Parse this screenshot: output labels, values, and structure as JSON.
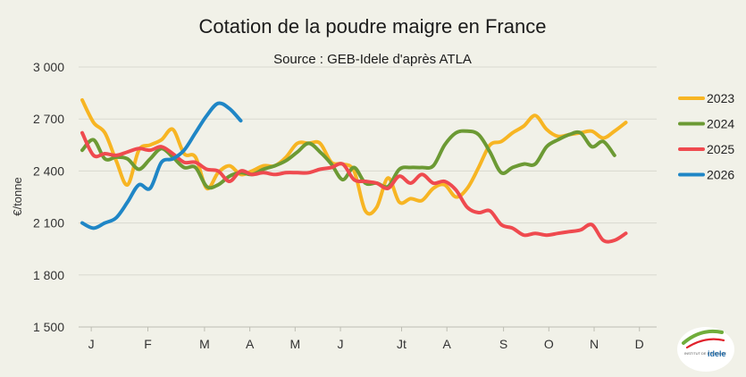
{
  "chart_data": {
    "type": "line",
    "title": "Cotation de la poudre maigre en France",
    "subtitle": "Source : GEB-Idele d'après ATLA",
    "ylabel": "€/tonne",
    "xlabel": "",
    "ylim": [
      1500,
      3000
    ],
    "yticks": [
      1500,
      1800,
      2100,
      2400,
      2700,
      3000
    ],
    "ytick_labels": [
      "1 500",
      "1 800",
      "2 100",
      "2 400",
      "2 700",
      "3 000"
    ],
    "xlim": [
      0,
      12
    ],
    "xtick_labels": [
      "J",
      "F",
      "M",
      "A",
      "M",
      "J",
      "Jt",
      "A",
      "S",
      "O",
      "N",
      "D"
    ],
    "xtick_positions": [
      0.2,
      1.45,
      2.7,
      3.7,
      4.7,
      5.7,
      7.05,
      8.05,
      9.3,
      10.3,
      11.3,
      12.3
    ],
    "grid": true,
    "legend_position": "right",
    "series": [
      {
        "name": "2023",
        "color": "#f7b523",
        "points": [
          [
            0,
            2810
          ],
          [
            0.25,
            2680
          ],
          [
            0.5,
            2620
          ],
          [
            0.75,
            2460
          ],
          [
            1.0,
            2320
          ],
          [
            1.25,
            2520
          ],
          [
            1.5,
            2550
          ],
          [
            1.75,
            2580
          ],
          [
            2.0,
            2640
          ],
          [
            2.25,
            2500
          ],
          [
            2.5,
            2480
          ],
          [
            2.75,
            2300
          ],
          [
            3.0,
            2390
          ],
          [
            3.25,
            2430
          ],
          [
            3.5,
            2380
          ],
          [
            3.75,
            2400
          ],
          [
            4.0,
            2430
          ],
          [
            4.25,
            2430
          ],
          [
            4.5,
            2480
          ],
          [
            4.75,
            2560
          ],
          [
            5.0,
            2560
          ],
          [
            5.25,
            2560
          ],
          [
            5.5,
            2450
          ],
          [
            5.75,
            2440
          ],
          [
            6.0,
            2400
          ],
          [
            6.25,
            2170
          ],
          [
            6.5,
            2190
          ],
          [
            6.75,
            2360
          ],
          [
            7.0,
            2220
          ],
          [
            7.25,
            2240
          ],
          [
            7.5,
            2230
          ],
          [
            7.75,
            2300
          ],
          [
            8.0,
            2320
          ],
          [
            8.25,
            2250
          ],
          [
            8.5,
            2300
          ],
          [
            8.75,
            2420
          ],
          [
            9.0,
            2550
          ],
          [
            9.25,
            2570
          ],
          [
            9.5,
            2620
          ],
          [
            9.75,
            2660
          ],
          [
            10.0,
            2720
          ],
          [
            10.25,
            2640
          ],
          [
            10.5,
            2600
          ],
          [
            10.75,
            2610
          ],
          [
            11.0,
            2620
          ],
          [
            11.25,
            2630
          ],
          [
            11.5,
            2590
          ],
          [
            11.75,
            2630
          ],
          [
            12.0,
            2680
          ]
        ]
      },
      {
        "name": "2024",
        "color": "#6c9a34",
        "points": [
          [
            0,
            2520
          ],
          [
            0.25,
            2580
          ],
          [
            0.5,
            2470
          ],
          [
            0.75,
            2480
          ],
          [
            1.0,
            2470
          ],
          [
            1.25,
            2410
          ],
          [
            1.5,
            2470
          ],
          [
            1.75,
            2530
          ],
          [
            2.0,
            2480
          ],
          [
            2.25,
            2420
          ],
          [
            2.5,
            2420
          ],
          [
            2.75,
            2310
          ],
          [
            3.0,
            2320
          ],
          [
            3.25,
            2370
          ],
          [
            3.5,
            2390
          ],
          [
            3.75,
            2380
          ],
          [
            4.0,
            2410
          ],
          [
            4.25,
            2430
          ],
          [
            4.5,
            2460
          ],
          [
            4.75,
            2510
          ],
          [
            5.0,
            2560
          ],
          [
            5.25,
            2510
          ],
          [
            5.5,
            2440
          ],
          [
            5.75,
            2350
          ],
          [
            6.0,
            2420
          ],
          [
            6.25,
            2330
          ],
          [
            6.5,
            2330
          ],
          [
            6.75,
            2310
          ],
          [
            7.0,
            2410
          ],
          [
            7.25,
            2420
          ],
          [
            7.5,
            2420
          ],
          [
            7.75,
            2430
          ],
          [
            8.0,
            2550
          ],
          [
            8.25,
            2620
          ],
          [
            8.5,
            2630
          ],
          [
            8.75,
            2610
          ],
          [
            9.0,
            2510
          ],
          [
            9.25,
            2390
          ],
          [
            9.5,
            2420
          ],
          [
            9.75,
            2440
          ],
          [
            10.0,
            2440
          ],
          [
            10.25,
            2540
          ],
          [
            10.5,
            2580
          ],
          [
            10.75,
            2610
          ],
          [
            11.0,
            2620
          ],
          [
            11.25,
            2540
          ],
          [
            11.5,
            2570
          ],
          [
            11.75,
            2490
          ]
        ]
      },
      {
        "name": "2025",
        "color": "#ef4a4f",
        "points": [
          [
            0,
            2620
          ],
          [
            0.25,
            2490
          ],
          [
            0.5,
            2500
          ],
          [
            0.75,
            2490
          ],
          [
            1.0,
            2510
          ],
          [
            1.25,
            2530
          ],
          [
            1.5,
            2520
          ],
          [
            1.75,
            2540
          ],
          [
            2.0,
            2500
          ],
          [
            2.25,
            2450
          ],
          [
            2.5,
            2450
          ],
          [
            2.75,
            2410
          ],
          [
            3.0,
            2400
          ],
          [
            3.25,
            2340
          ],
          [
            3.5,
            2400
          ],
          [
            3.75,
            2380
          ],
          [
            4.0,
            2390
          ],
          [
            4.25,
            2380
          ],
          [
            4.5,
            2390
          ],
          [
            4.75,
            2390
          ],
          [
            5.0,
            2390
          ],
          [
            5.25,
            2410
          ],
          [
            5.5,
            2420
          ],
          [
            5.75,
            2440
          ],
          [
            6.0,
            2350
          ],
          [
            6.25,
            2340
          ],
          [
            6.5,
            2330
          ],
          [
            6.75,
            2300
          ],
          [
            7.0,
            2370
          ],
          [
            7.25,
            2330
          ],
          [
            7.5,
            2380
          ],
          [
            7.75,
            2330
          ],
          [
            8.0,
            2340
          ],
          [
            8.25,
            2290
          ],
          [
            8.5,
            2190
          ],
          [
            8.75,
            2160
          ],
          [
            9.0,
            2170
          ],
          [
            9.25,
            2090
          ],
          [
            9.5,
            2070
          ],
          [
            9.75,
            2030
          ],
          [
            10.0,
            2040
          ],
          [
            10.25,
            2030
          ],
          [
            10.5,
            2040
          ],
          [
            10.75,
            2050
          ],
          [
            11.0,
            2060
          ],
          [
            11.25,
            2090
          ],
          [
            11.5,
            2000
          ],
          [
            11.75,
            2000
          ],
          [
            12.0,
            2040
          ]
        ]
      },
      {
        "name": "2026",
        "color": "#1f86c6",
        "points": [
          [
            0,
            2100
          ],
          [
            0.25,
            2070
          ],
          [
            0.5,
            2100
          ],
          [
            0.75,
            2130
          ],
          [
            1.0,
            2220
          ],
          [
            1.25,
            2320
          ],
          [
            1.5,
            2300
          ],
          [
            1.75,
            2450
          ],
          [
            2.0,
            2470
          ],
          [
            2.25,
            2520
          ],
          [
            2.5,
            2620
          ],
          [
            2.75,
            2720
          ],
          [
            3.0,
            2790
          ],
          [
            3.25,
            2760
          ],
          [
            3.5,
            2690
          ]
        ]
      }
    ]
  },
  "logo": {
    "small_text": "INSTITUT DE L'ÉLEVAGE",
    "brand": "idele"
  }
}
